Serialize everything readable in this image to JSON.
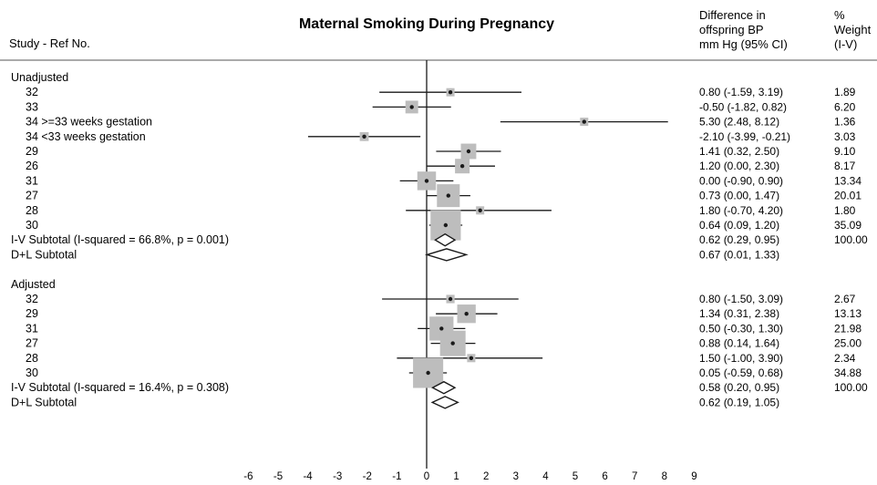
{
  "chart_data": {
    "type": "forest",
    "title": "Maternal Smoking During Pregnancy",
    "study_header": "Study - Ref No.",
    "effect_header": [
      "Difference in",
      "offspring BP",
      "mm Hg (95% CI)"
    ],
    "weight_header": [
      "%",
      "Weight",
      "(I-V)"
    ],
    "xlim": [
      -6,
      9
    ],
    "xticks": [
      -6,
      -5,
      -4,
      -3,
      -2,
      -1,
      0,
      1,
      2,
      3,
      4,
      5,
      6,
      7,
      8,
      9
    ],
    "reference_line": 0,
    "groups": [
      {
        "name": "Unadjusted",
        "studies": [
          {
            "label": "32",
            "est": 0.8,
            "lo": -1.59,
            "hi": 3.19,
            "ci_text": "0.80 (-1.59, 3.19)",
            "weight": "1.89"
          },
          {
            "label": "33",
            "est": -0.5,
            "lo": -1.82,
            "hi": 0.82,
            "ci_text": "-0.50 (-1.82, 0.82)",
            "weight": "6.20"
          },
          {
            "label": "34 >=33 weeks gestation",
            "est": 5.3,
            "lo": 2.48,
            "hi": 8.12,
            "ci_text": "5.30 (2.48, 8.12)",
            "weight": "1.36"
          },
          {
            "label": "34 <33 weeks gestation",
            "est": -2.1,
            "lo": -3.99,
            "hi": -0.21,
            "ci_text": "-2.10 (-3.99, -0.21)",
            "weight": "3.03"
          },
          {
            "label": "29",
            "est": 1.41,
            "lo": 0.32,
            "hi": 2.5,
            "ci_text": "1.41 (0.32, 2.50)",
            "weight": "9.10"
          },
          {
            "label": "26",
            "est": 1.2,
            "lo": 0.0,
            "hi": 2.3,
            "ci_text": "1.20 (0.00, 2.30)",
            "weight": "8.17"
          },
          {
            "label": "31",
            "est": 0.0,
            "lo": -0.9,
            "hi": 0.9,
            "ci_text": "0.00 (-0.90, 0.90)",
            "weight": "13.34"
          },
          {
            "label": "27",
            "est": 0.73,
            "lo": 0.0,
            "hi": 1.47,
            "ci_text": "0.73 (0.00, 1.47)",
            "weight": "20.01"
          },
          {
            "label": "28",
            "est": 1.8,
            "lo": -0.7,
            "hi": 4.2,
            "ci_text": "1.80 (-0.70, 4.20)",
            "weight": "1.80"
          },
          {
            "label": "30",
            "est": 0.64,
            "lo": 0.09,
            "hi": 1.2,
            "ci_text": "0.64 (0.09, 1.20)",
            "weight": "35.09"
          }
        ],
        "subtotals": [
          {
            "label": "I-V Subtotal  (I-squared = 66.8%, p = 0.001)",
            "est": 0.62,
            "lo": 0.29,
            "hi": 0.95,
            "ci_text": "0.62 (0.29, 0.95)",
            "weight": "100.00"
          },
          {
            "label": "D+L Subtotal",
            "est": 0.67,
            "lo": 0.01,
            "hi": 1.33,
            "ci_text": "0.67 (0.01, 1.33)",
            "weight": ""
          }
        ]
      },
      {
        "name": "Adjusted",
        "studies": [
          {
            "label": "32",
            "est": 0.8,
            "lo": -1.5,
            "hi": 3.09,
            "ci_text": "0.80 (-1.50, 3.09)",
            "weight": "2.67"
          },
          {
            "label": "29",
            "est": 1.34,
            "lo": 0.31,
            "hi": 2.38,
            "ci_text": "1.34 (0.31, 2.38)",
            "weight": "13.13"
          },
          {
            "label": "31",
            "est": 0.5,
            "lo": -0.3,
            "hi": 1.3,
            "ci_text": "0.50 (-0.30, 1.30)",
            "weight": "21.98"
          },
          {
            "label": "27",
            "est": 0.88,
            "lo": 0.14,
            "hi": 1.64,
            "ci_text": "0.88 (0.14, 1.64)",
            "weight": "25.00"
          },
          {
            "label": "28",
            "est": 1.5,
            "lo": -1.0,
            "hi": 3.9,
            "ci_text": "1.50 (-1.00, 3.90)",
            "weight": "2.34"
          },
          {
            "label": "30",
            "est": 0.05,
            "lo": -0.59,
            "hi": 0.68,
            "ci_text": "0.05 (-0.59, 0.68)",
            "weight": "34.88"
          }
        ],
        "subtotals": [
          {
            "label": "I-V Subtotal  (I-squared = 16.4%, p = 0.308)",
            "est": 0.58,
            "lo": 0.2,
            "hi": 0.95,
            "ci_text": "0.58 (0.20, 0.95)",
            "weight": "100.00"
          },
          {
            "label": "D+L Subtotal",
            "est": 0.62,
            "lo": 0.19,
            "hi": 1.05,
            "ci_text": "0.62 (0.19, 1.05)",
            "weight": ""
          }
        ]
      }
    ]
  },
  "colors": {
    "box": "#bdbdbd",
    "line": "#1a1a1a",
    "text": "#1a1a1a"
  }
}
